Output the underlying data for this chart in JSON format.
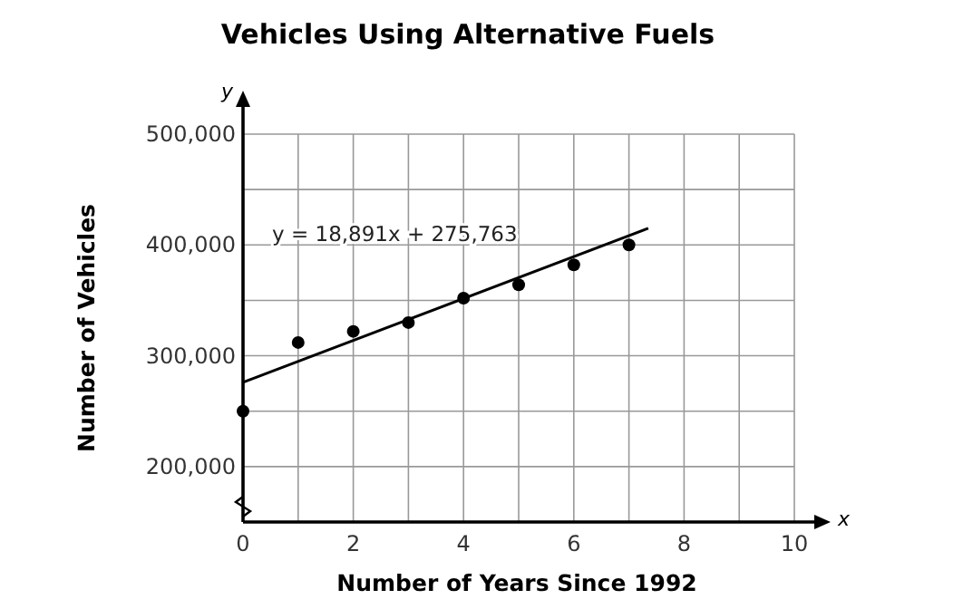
{
  "chart_data": {
    "type": "scatter",
    "title": "Vehicles Using Alternative Fuels",
    "xlabel": "Number of Years Since 1992",
    "ylabel": "Number of Vehicles",
    "annotations": [
      "y = 18,891x + 275,763",
      "x",
      "y"
    ],
    "series": [
      {
        "color": "#000000",
        "x": [
          0,
          1,
          2,
          3,
          4,
          5,
          6,
          7
        ],
        "values": [
          250000,
          312000,
          322000,
          330000,
          352000,
          364000,
          382000,
          400000
        ],
        "marker": "circle"
      },
      {
        "type": "line",
        "color": "#000000",
        "x": [
          0,
          7.35
        ],
        "values": [
          276000,
          415000
        ],
        "marker": "none",
        "line_style": "solid"
      }
    ],
    "xlim": [
      0,
      10
    ],
    "xticks": [
      0,
      {
        "value": 1,
        "label": null
      },
      2,
      {
        "value": 3,
        "label": null
      },
      4,
      {
        "value": 5,
        "label": null
      },
      6,
      {
        "value": 7,
        "label": null
      },
      8,
      {
        "value": 9,
        "label": null
      },
      10
    ],
    "ylim": [
      150000,
      500000
    ],
    "yticks": [
      {
        "value": 150000,
        "label": null
      },
      {
        "value": 200000,
        "label": "200,000"
      },
      {
        "value": 250000,
        "label": null
      },
      {
        "value": 300000,
        "label": "300,000"
      },
      {
        "value": 350000,
        "label": null
      },
      {
        "value": 400000,
        "label": "400,000"
      },
      {
        "value": 450000,
        "label": null
      },
      {
        "value": 500000,
        "label": "500,000"
      }
    ],
    "grid": true
  }
}
